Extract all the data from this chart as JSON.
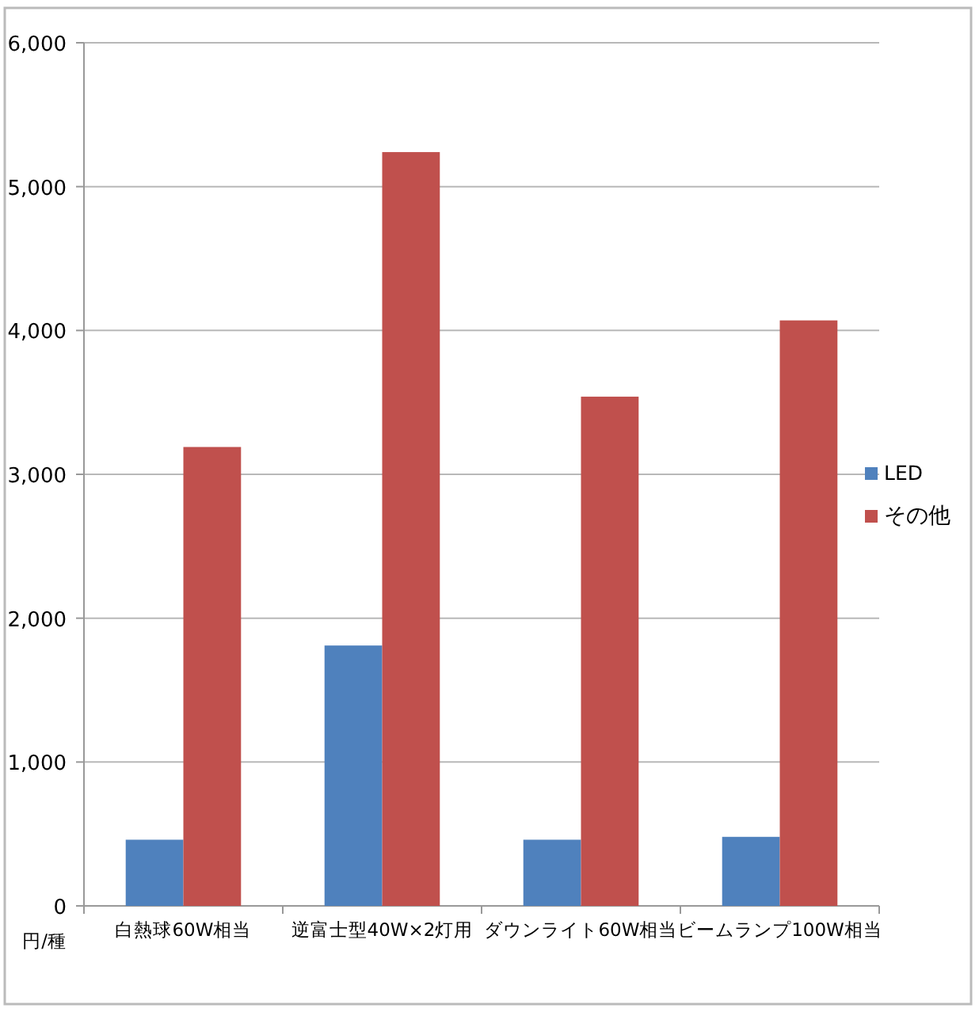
{
  "chart_data": {
    "type": "bar",
    "ylabel": "円/種",
    "categories": [
      "白熱球60W相当",
      "逆富士型40W×2灯用",
      "ダウンライト60W相当",
      "ビームランプ100W相当"
    ],
    "series": [
      {
        "name": "LED",
        "color": "#4f81bd",
        "values": [
          460,
          1810,
          460,
          480
        ]
      },
      {
        "name": "その他",
        "color": "#c0504d",
        "values": [
          3190,
          5240,
          3540,
          4070
        ]
      }
    ],
    "ylim": [
      0,
      6000
    ],
    "yticks": [
      {
        "value": 0,
        "label": "0"
      },
      {
        "value": 1000,
        "label": "1,000"
      },
      {
        "value": 2000,
        "label": "2,000"
      },
      {
        "value": 3000,
        "label": "3,000"
      },
      {
        "value": 4000,
        "label": "4,000"
      },
      {
        "value": 5000,
        "label": "5,000"
      },
      {
        "value": 6000,
        "label": "6,000"
      }
    ],
    "grid": "y",
    "legend": "right"
  }
}
